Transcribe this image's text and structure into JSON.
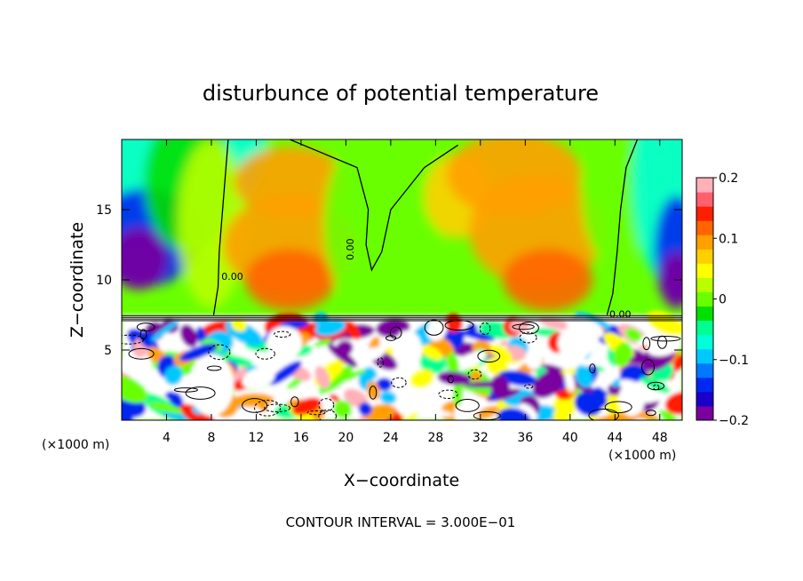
{
  "chart_data": {
    "type": "heatmap",
    "title": "disturbunce of potential temperature",
    "xlabel": "X−coordinate",
    "ylabel": "Z−coordinate",
    "xunit_left": "(×1000 m)",
    "xunit_right": "(×1000 m)",
    "footer": "CONTOUR INTERVAL = 3.000E−01",
    "xlim": [
      0,
      50
    ],
    "ylim": [
      0,
      20
    ],
    "x_ticks": [
      4,
      8,
      12,
      16,
      20,
      24,
      28,
      32,
      36,
      40,
      44,
      48
    ],
    "x_tick_labels": [
      "4",
      "8",
      "12",
      "16",
      "20",
      "24",
      "28",
      "32",
      "36",
      "40",
      "44",
      "48"
    ],
    "y_ticks": [
      5,
      10,
      15
    ],
    "y_tick_labels": [
      "5",
      "10",
      "15"
    ],
    "colorbar": {
      "range": [
        -0.2,
        0.2
      ],
      "ticks": [
        0.2,
        0.1,
        0,
        -0.1,
        -0.2
      ],
      "tick_labels": [
        "0.2",
        "0.1",
        "0",
        "−0.1",
        "−0.2"
      ],
      "colors": [
        "#7a00a0",
        "#1a00c8",
        "#0028f0",
        "#0078ff",
        "#00c8ff",
        "#00ffd8",
        "#00ff90",
        "#00e000",
        "#6aff00",
        "#b8ff00",
        "#ffff00",
        "#ffd000",
        "#ffa000",
        "#ff6400",
        "#ff1e00",
        "#ff6070",
        "#ffb0b8"
      ]
    },
    "contour_labels": [
      {
        "text": "0.00",
        "x": 8.9,
        "z": 10.0
      },
      {
        "text": "0.00",
        "x": 20.7,
        "z": 11.4
      },
      {
        "text": "0.00",
        "x": 43.5,
        "z": 7.3
      }
    ],
    "fields": {
      "upper_layer": "smooth positive anomaly (0 to 0.15) between x=8 and x=44, negative (-0.1 to -0.2) near both lateral boundaries",
      "lower_layer": "turbulent mixed field below z=7.5, values span -0.2 to 0.2"
    }
  }
}
